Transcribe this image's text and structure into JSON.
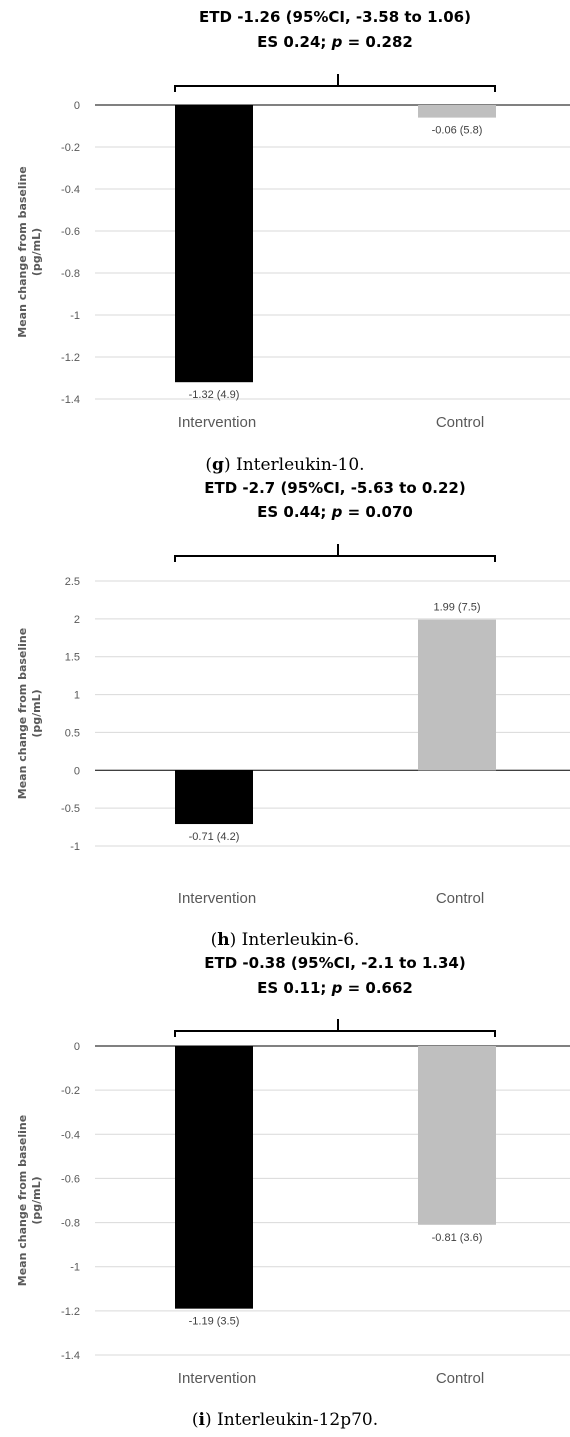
{
  "chart_data": [
    {
      "type": "bar",
      "header_line1": "ETD -1.26 (95%CI, -3.58 to 1.06)",
      "header_line2_prefix": "ES 0.24; ",
      "header_line2_p": "p",
      "header_line2_suffix": " = 0.282",
      "ylabel_line1": "Mean change from baseline",
      "ylabel_line2": "(pg/mL)",
      "categories": [
        "Intervention",
        "Control"
      ],
      "values": [
        -1.32,
        -0.06
      ],
      "data_labels": [
        "-1.32 (4.9)",
        "-0.06 (5.8)"
      ],
      "colors": [
        "#000000",
        "#bfbfbf"
      ],
      "ylim": [
        -1.4,
        0
      ],
      "yticks": [
        0,
        -0.2,
        -0.4,
        -0.6,
        -0.8,
        -1,
        -1.2,
        -1.4
      ],
      "ytick_labels": [
        "0",
        "-0.2",
        "-0.4",
        "-0.6",
        "-0.8",
        "-1",
        "-1.2",
        "-1.4"
      ],
      "grid": true,
      "caption_open": "(",
      "caption_letter": "g",
      "caption_rest": ") Interleukin-10."
    },
    {
      "type": "bar",
      "header_line1": "ETD -2.7 (95%CI, -5.63 to 0.22)",
      "header_line2_prefix": "ES 0.44; ",
      "header_line2_p": "p",
      "header_line2_suffix": " = 0.070",
      "ylabel_line1": "Mean change from baseline",
      "ylabel_line2": "(pg/mL)",
      "categories": [
        "Intervention",
        "Control"
      ],
      "values": [
        -0.71,
        1.99
      ],
      "data_labels": [
        "-0.71 (4.2)",
        "1.99 (7.5)"
      ],
      "colors": [
        "#000000",
        "#bfbfbf"
      ],
      "ylim": [
        -1,
        2.5
      ],
      "yticks": [
        2.5,
        2,
        1.5,
        1,
        0.5,
        0,
        -0.5,
        -1
      ],
      "ytick_labels": [
        "2.5",
        "2",
        "1.5",
        "1",
        "0.5",
        "0",
        "-0.5",
        "-1"
      ],
      "grid": true,
      "caption_open": "(",
      "caption_letter": "h",
      "caption_rest": ") Interleukin-6."
    },
    {
      "type": "bar",
      "header_line1": "ETD -0.38 (95%CI, -2.1 to 1.34)",
      "header_line2_prefix": "ES 0.11; ",
      "header_line2_p": "p",
      "header_line2_suffix": " = 0.662",
      "ylabel_line1": "Mean change from baseline",
      "ylabel_line2": "(pg/mL)",
      "categories": [
        "Intervention",
        "Control"
      ],
      "values": [
        -1.19,
        -0.81
      ],
      "data_labels": [
        "-1.19 (3.5)",
        "-0.81 (3.6)"
      ],
      "colors": [
        "#000000",
        "#bfbfbf"
      ],
      "ylim": [
        -1.4,
        0
      ],
      "yticks": [
        0,
        -0.2,
        -0.4,
        -0.6,
        -0.8,
        -1,
        -1.2,
        -1.4
      ],
      "ytick_labels": [
        "0",
        "-0.2",
        "-0.4",
        "-0.6",
        "-0.8",
        "-1",
        "-1.2",
        "-1.4"
      ],
      "grid": true,
      "caption_open": "(",
      "caption_letter": "i",
      "caption_rest": ") Interleukin-12p70."
    }
  ]
}
